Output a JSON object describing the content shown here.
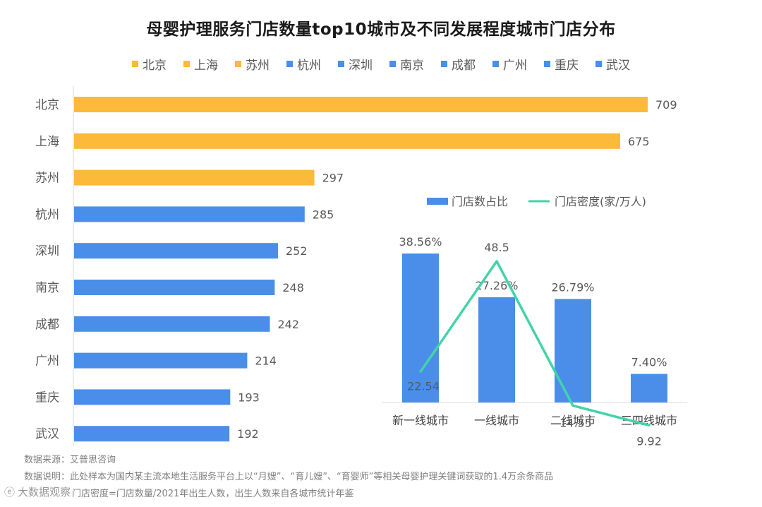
{
  "title": "母婴护理服务门店数量top10城市及不同发展程度城市门店分布",
  "colors": {
    "highlight": "#FBBA3A",
    "base": "#4A8EEA",
    "line": "#43D3A8",
    "text": "#595959",
    "note": "#808080"
  },
  "chart_data": [
    {
      "type": "bar",
      "orientation": "horizontal",
      "categories": [
        "北京",
        "上海",
        "苏州",
        "杭州",
        "深圳",
        "南京",
        "成都",
        "广州",
        "重庆",
        "武汉"
      ],
      "values": [
        709,
        675,
        297,
        285,
        252,
        248,
        242,
        214,
        193,
        192
      ],
      "highlight_count": 3,
      "legend": [
        "北京",
        "上海",
        "苏州",
        "杭州",
        "深圳",
        "南京",
        "成都",
        "广州",
        "重庆",
        "武汉"
      ],
      "legend_position": "top"
    },
    {
      "type": "bar+line",
      "categories": [
        "新一线城市",
        "一线城市",
        "二线城市",
        "三四线城市"
      ],
      "series": [
        {
          "name": "门店数占比",
          "type": "bar",
          "values": [
            38.56,
            27.26,
            26.79,
            7.4
          ],
          "labels": [
            "38.56%",
            "27.26%",
            "26.79%",
            "7.40%"
          ]
        },
        {
          "name": "门店密度(家/万人)",
          "type": "line",
          "values": [
            22.54,
            48.5,
            14.55,
            9.92
          ],
          "labels": [
            "22.54",
            "48.5",
            "14.55",
            "9.92"
          ]
        }
      ],
      "legend_position": "top"
    }
  ],
  "notes": [
    "数据来源：艾普思咨询",
    "数据说明：此处样本为国内某主流本地生活服务平台上以“月嫂”、“育儿嫂”、“育婴师”等相关母婴护理关键词获取的1.4万余条商品",
    "门店密度=门店数量/2021年出生人数，出生人数来自各城市统计年鉴"
  ],
  "brand": {
    "icon": "weibo-icon",
    "text": "大数据观察"
  }
}
